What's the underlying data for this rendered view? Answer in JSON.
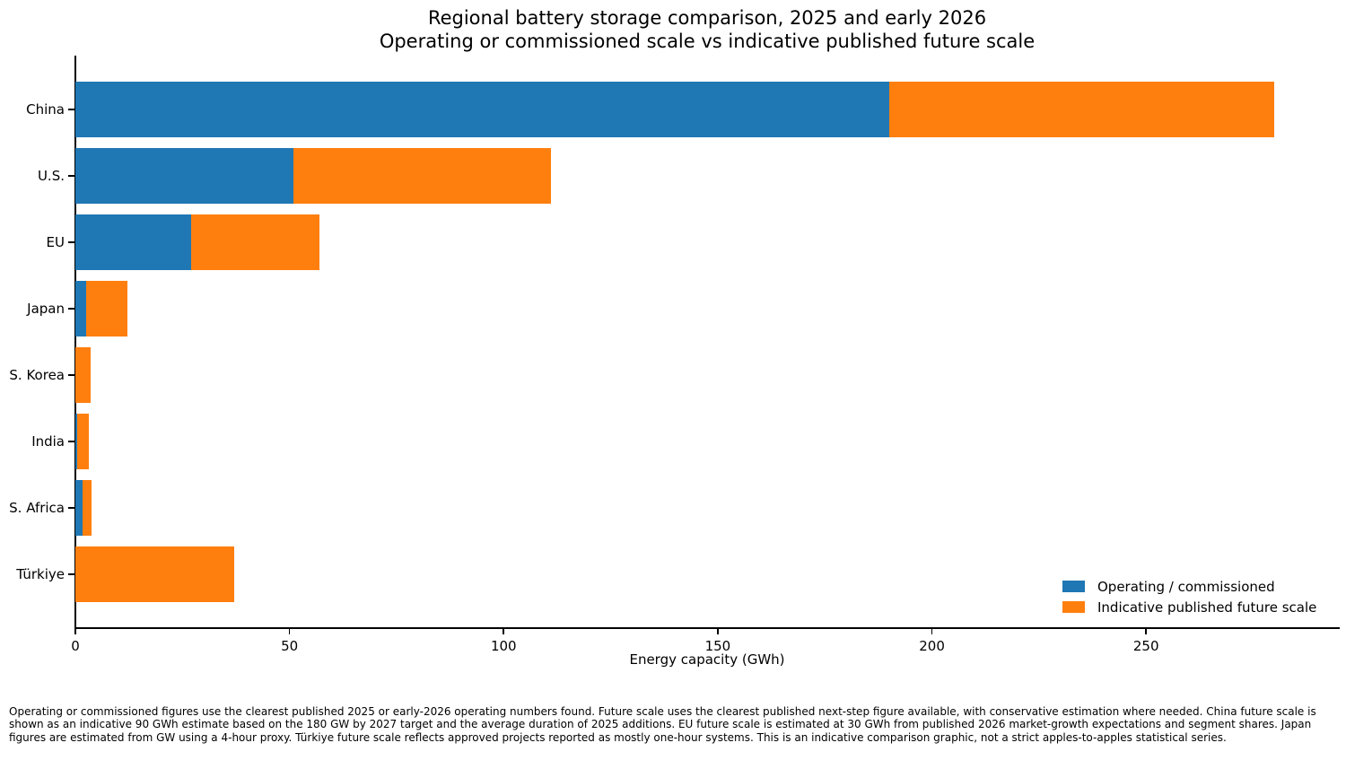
{
  "title": {
    "line1": "Regional battery storage comparison, 2025 and early 2026",
    "line2": "Operating or commissioned scale vs indicative published future scale"
  },
  "chart_data": {
    "type": "bar",
    "orientation": "horizontal",
    "stacked": true,
    "categories": [
      "China",
      "U.S.",
      "EU",
      "Japan",
      "S. Korea",
      "India",
      "S. Africa",
      "Türkiye"
    ],
    "series": [
      {
        "name": "Operating / commissioned",
        "color": "#1f77b4",
        "values": [
          190,
          51,
          27,
          2.5,
          0,
          0.5,
          1.6,
          0
        ]
      },
      {
        "name": "Indicative published future scale",
        "color": "#ff7f0e",
        "values": [
          90,
          60,
          30,
          9.6,
          3.5,
          2.7,
          2.1,
          37
        ]
      }
    ],
    "totals": [
      280,
      111,
      57,
      12.1,
      3.5,
      3.2,
      3.7,
      37
    ],
    "xlabel": "Energy capacity (GWh)",
    "xticks": [
      0,
      50,
      100,
      150,
      200,
      250
    ],
    "xlim": [
      0,
      295
    ],
    "grid": false,
    "legend_position": "lower right",
    "axis_color": "#000000"
  },
  "footnote": "Operating or commissioned figures use the clearest published 2025 or early-2026 operating numbers found. Future scale uses the clearest published next-step figure available, with conservative estimation where needed. China future scale is shown as an indicative 90 GWh estimate based on the 180 GW by 2027 target and the average duration of 2025 additions. EU future scale is estimated at 30 GWh from published 2026 market-growth expectations and segment shares. Japan figures are estimated from GW using a 4-hour proxy. Türkiye future scale reflects approved projects reported as mostly one-hour systems. This is an indicative comparison graphic, not a strict apples-to-apples statistical series."
}
